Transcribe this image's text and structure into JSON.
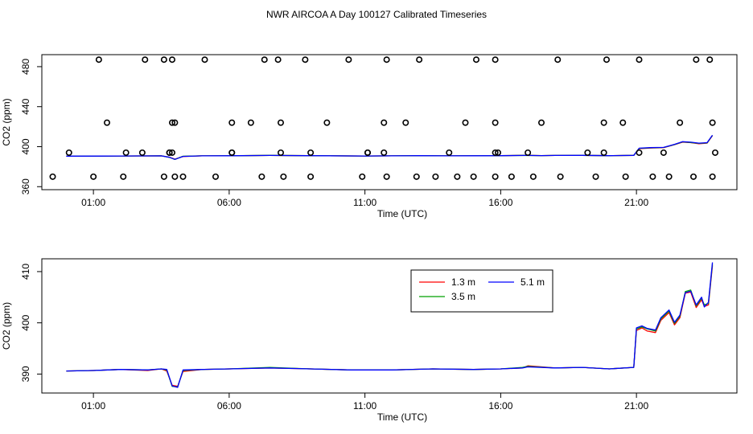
{
  "title": "NWR AIRCOA A  Day 100127  Calibrated Timeseries",
  "chart_data": [
    {
      "type": "line",
      "name": "top-panel",
      "xlabel": "Time (UTC)",
      "ylabel": "CO2 (ppm)",
      "xlim": [
        -0.9,
        24.7
      ],
      "ylim": [
        357,
        492
      ],
      "x_ticks": [
        1,
        6,
        11,
        16,
        21
      ],
      "x_tick_labels": [
        "01:00",
        "06:00",
        "11:00",
        "16:00",
        "21:00"
      ],
      "y_ticks": [
        360,
        400,
        440,
        480
      ],
      "y_tick_labels": [
        "360",
        "400",
        "440",
        "480"
      ],
      "series": [
        {
          "name": "1.3 m",
          "color": "#ff0000",
          "x": [
            0,
            2,
            3.5,
            3.8,
            4.0,
            4.3,
            5,
            6,
            7.5,
            9,
            11,
            12,
            13,
            14,
            15,
            16,
            16.9,
            17.5,
            18,
            19,
            20,
            20.9,
            21.1,
            21.5,
            22,
            22.4,
            22.7,
            23,
            23.3,
            23.6,
            23.8
          ],
          "y": [
            390.5,
            390.7,
            390.8,
            389.5,
            387.5,
            390.2,
            390.8,
            390.9,
            391.2,
            391.0,
            390.7,
            390.8,
            391.0,
            390.8,
            390.9,
            391.0,
            391.4,
            391.1,
            391.2,
            391.3,
            391.0,
            391.3,
            398.0,
            398.6,
            399.0,
            402.0,
            404.5,
            404.0,
            403.0,
            403.5,
            411.0
          ]
        },
        {
          "name": "3.5 m",
          "color": "#00a000",
          "x": [
            0,
            2,
            3.5,
            3.8,
            4.0,
            4.3,
            5,
            6,
            7.5,
            9,
            11,
            12,
            13,
            14,
            15,
            16,
            16.9,
            17.5,
            18,
            19,
            20,
            20.9,
            21.1,
            21.5,
            22,
            22.4,
            22.7,
            23,
            23.3,
            23.6,
            23.8
          ],
          "y": [
            390.5,
            390.7,
            390.8,
            389.3,
            387.2,
            390.4,
            390.8,
            390.9,
            391.3,
            391.0,
            390.7,
            390.8,
            391.0,
            390.8,
            390.9,
            391.0,
            391.3,
            391.1,
            391.2,
            391.3,
            391.0,
            391.3,
            398.3,
            398.8,
            399.2,
            402.1,
            404.8,
            404.2,
            403.3,
            403.7,
            411.3
          ]
        },
        {
          "name": "5.1 m",
          "color": "#0000ff",
          "x": [
            0,
            2,
            3.5,
            3.8,
            4.0,
            4.3,
            5,
            6,
            7.5,
            9,
            11,
            12,
            13,
            14,
            15,
            16,
            16.9,
            17.5,
            18,
            19,
            20,
            20.9,
            21.1,
            21.5,
            22,
            22.4,
            22.7,
            23,
            23.3,
            23.6,
            23.8
          ],
          "y": [
            390.5,
            390.7,
            390.8,
            389.4,
            387.3,
            390.3,
            390.8,
            390.9,
            391.2,
            391.0,
            390.7,
            390.8,
            391.0,
            390.8,
            390.9,
            391.0,
            391.2,
            391.1,
            391.2,
            391.3,
            391.0,
            391.3,
            398.5,
            399.0,
            399.3,
            402.3,
            405.0,
            404.5,
            403.5,
            404.0,
            411.5
          ]
        }
      ],
      "points": {
        "name": "status-flags",
        "x": [
          -0.5,
          1.0,
          2.1,
          3.6,
          4.0,
          4.3,
          5.5,
          7.2,
          8.0,
          9.0,
          10.9,
          11.8,
          12.9,
          13.6,
          14.4,
          15.0,
          15.8,
          16.4,
          17.2,
          18.2,
          19.5,
          20.6,
          21.6,
          22.2,
          23.1,
          23.8,
          1.5,
          3.9,
          4.0,
          6.1,
          6.8,
          7.9,
          9.6,
          11.7,
          12.5,
          14.7,
          15.8,
          17.5,
          19.8,
          20.5,
          22.6,
          23.8,
          0.1,
          2.2,
          2.8,
          3.8,
          3.8,
          3.9,
          6.1,
          6.1,
          7.9,
          9.0,
          11.1,
          11.1,
          11.7,
          14.1,
          15.8,
          15.9,
          17.0,
          19.2,
          19.8,
          21.1,
          22.0,
          23.9,
          1.2,
          2.9,
          3.6,
          3.9,
          5.1,
          7.3,
          7.8,
          8.8,
          10.4,
          11.8,
          13.0,
          15.1,
          15.8,
          18.1,
          19.9,
          21.1,
          23.2,
          23.7
        ],
        "y": [
          370,
          370,
          370,
          370,
          370,
          370,
          370,
          370,
          370,
          370,
          370,
          370,
          370,
          370,
          370,
          370,
          370,
          370,
          370,
          370,
          370,
          370,
          370,
          370,
          370,
          370,
          424,
          424,
          424,
          424,
          424,
          424,
          424,
          424,
          424,
          424,
          424,
          424,
          424,
          424,
          424,
          424,
          394,
          394,
          394,
          394,
          394,
          394,
          394,
          394,
          394,
          394,
          394,
          394,
          394,
          394,
          394,
          394,
          394,
          394,
          394,
          394,
          394,
          394,
          487,
          487,
          487,
          487,
          487,
          487,
          487,
          487,
          487,
          487,
          487,
          487,
          487,
          487,
          487,
          487,
          487,
          487
        ]
      }
    },
    {
      "type": "line",
      "name": "bottom-panel",
      "xlabel": "Time (UTC)",
      "ylabel": "CO2 (ppm)",
      "xlim": [
        -0.9,
        24.7
      ],
      "ylim": [
        386.3,
        412.5
      ],
      "x_ticks": [
        1,
        6,
        11,
        16,
        21
      ],
      "x_tick_labels": [
        "01:00",
        "06:00",
        "11:00",
        "16:00",
        "21:00"
      ],
      "y_ticks": [
        390,
        400,
        410
      ],
      "y_tick_labels": [
        "390",
        "400",
        "410"
      ],
      "legend": {
        "position": "upper-middle-right",
        "entries": [
          {
            "label": "1.3 m",
            "color": "#ff0000"
          },
          {
            "label": "3.5 m",
            "color": "#00a000"
          },
          {
            "label": "5.1 m",
            "color": "#0000ff"
          }
        ]
      },
      "series": [
        {
          "name": "1.3 m",
          "color": "#ff0000",
          "x": [
            0,
            1,
            2,
            3,
            3.5,
            3.7,
            3.9,
            4.1,
            4.3,
            5,
            6,
            7.5,
            9,
            10.5,
            12,
            13.5,
            15,
            16,
            16.8,
            17,
            18,
            19,
            20,
            20.9,
            21.0,
            21.2,
            21.4,
            21.7,
            21.9,
            22.2,
            22.4,
            22.6,
            22.8,
            23.0,
            23.2,
            23.4,
            23.5,
            23.65,
            23.8
          ],
          "y": [
            390.6,
            390.7,
            390.9,
            390.7,
            391.0,
            390.6,
            387.8,
            387.6,
            390.5,
            390.9,
            391.0,
            391.2,
            391.0,
            390.8,
            390.8,
            391.0,
            390.9,
            391.0,
            391.2,
            391.6,
            391.2,
            391.3,
            391.0,
            391.3,
            398.5,
            399.0,
            398.4,
            398.1,
            400.5,
            402.0,
            399.6,
            401.0,
            405.8,
            406.0,
            403.0,
            404.5,
            403.2,
            403.5,
            411.2
          ]
        },
        {
          "name": "3.5 m",
          "color": "#00a000",
          "x": [
            0,
            1,
            2,
            3,
            3.5,
            3.7,
            3.9,
            4.1,
            4.3,
            5,
            6,
            7.5,
            9,
            10.5,
            12,
            13.5,
            15,
            16,
            16.8,
            17,
            18,
            19,
            20,
            20.9,
            21.0,
            21.2,
            21.4,
            21.7,
            21.9,
            22.2,
            22.4,
            22.6,
            22.8,
            23.0,
            23.2,
            23.4,
            23.5,
            23.65,
            23.8
          ],
          "y": [
            390.6,
            390.7,
            390.9,
            390.8,
            391.0,
            390.8,
            387.6,
            387.5,
            390.7,
            390.9,
            391.0,
            391.3,
            391.0,
            390.8,
            390.8,
            391.0,
            390.9,
            391.0,
            391.3,
            391.5,
            391.2,
            391.3,
            391.0,
            391.3,
            398.8,
            399.2,
            398.8,
            398.4,
            400.8,
            402.3,
            399.9,
            401.3,
            406.1,
            406.4,
            403.3,
            404.8,
            403.5,
            403.8,
            411.5
          ]
        },
        {
          "name": "5.1 m",
          "color": "#0000ff",
          "x": [
            0,
            1,
            2,
            3,
            3.5,
            3.7,
            3.9,
            4.1,
            4.3,
            5,
            6,
            7.5,
            9,
            10.5,
            12,
            13.5,
            15,
            16,
            16.8,
            17,
            18,
            19,
            20,
            20.9,
            21.0,
            21.2,
            21.4,
            21.7,
            21.9,
            22.2,
            22.4,
            22.6,
            22.8,
            23.0,
            23.2,
            23.4,
            23.5,
            23.65,
            23.8
          ],
          "y": [
            390.6,
            390.7,
            390.9,
            390.8,
            391.0,
            390.9,
            387.7,
            387.4,
            390.8,
            390.9,
            391.0,
            391.2,
            391.0,
            390.8,
            390.8,
            391.0,
            390.9,
            391.0,
            391.2,
            391.4,
            391.2,
            391.3,
            391.0,
            391.3,
            399.0,
            399.4,
            398.9,
            398.6,
            401.0,
            402.5,
            400.1,
            401.5,
            405.9,
            406.2,
            403.5,
            405.0,
            403.1,
            404.0,
            411.8
          ]
        }
      ]
    }
  ]
}
